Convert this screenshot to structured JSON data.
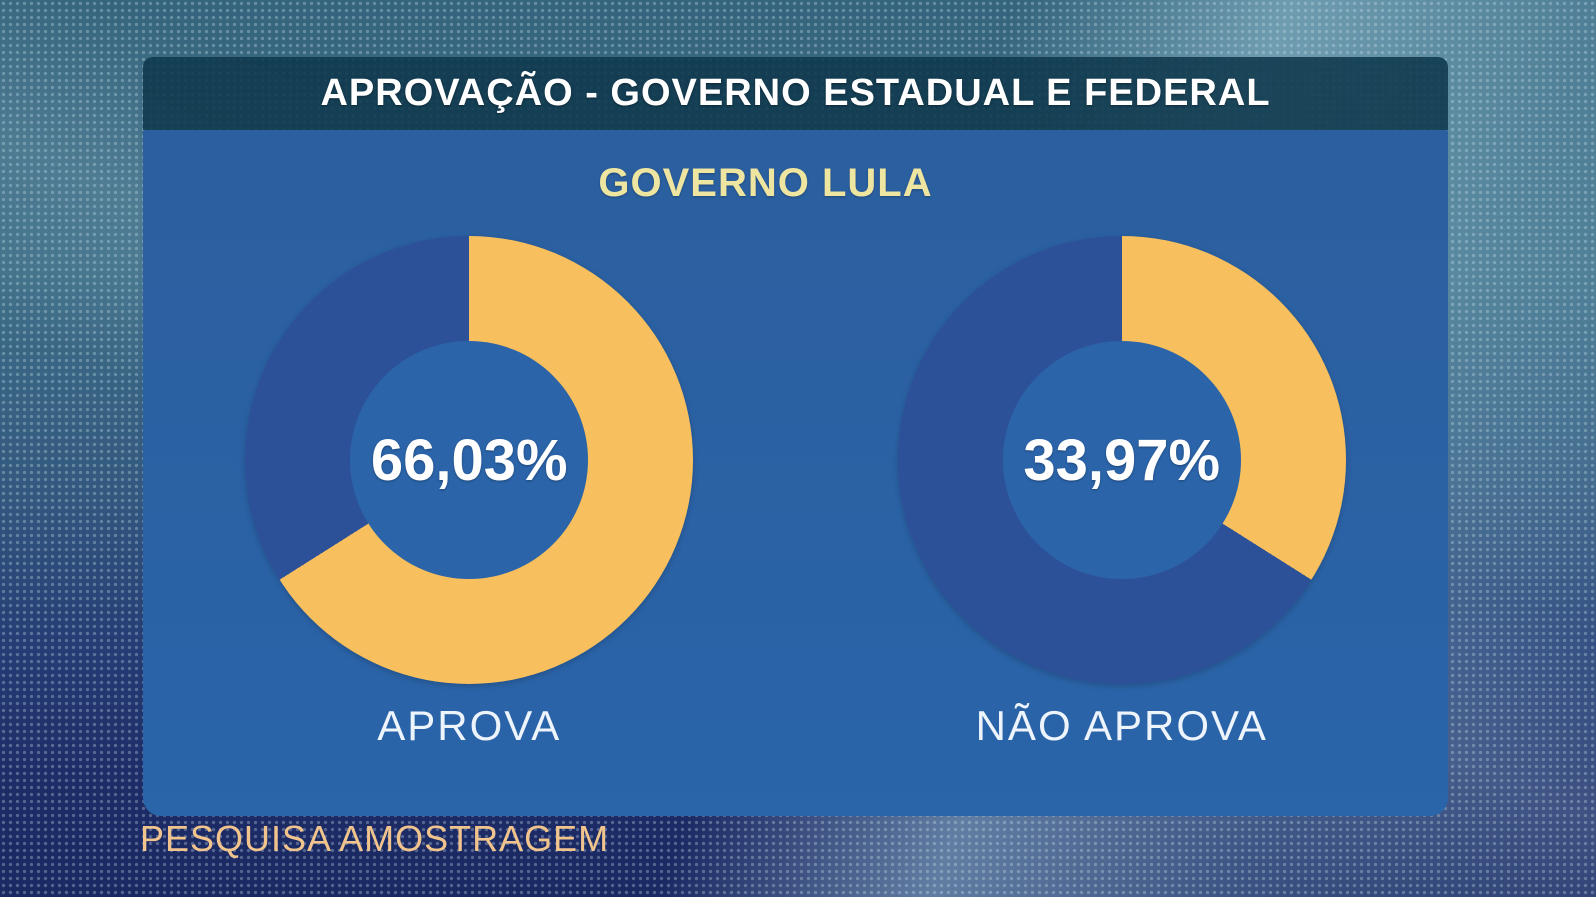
{
  "header": {
    "title": "APROVAÇÃO - GOVERNO ESTADUAL E FEDERAL"
  },
  "footer": {
    "source": "PESQUISA AMOSTRAGEM"
  },
  "colors": {
    "panel_bg": "#2a62a6",
    "header_bg": "#12404f",
    "slice_yellow": "#f7bf5d",
    "remainder_blue": "#2d5198",
    "hole_blue": "#2b64a9",
    "subtitle_yellow": "#eee5a0",
    "footer_orange": "#f0c48c"
  },
  "chart_data": {
    "type": "pie",
    "variant": "donut",
    "title": "GOVERNO LULA",
    "units": "%",
    "start_angle_deg": 0,
    "direction": "clockwise",
    "legend_position": "below-each-chart",
    "colors": {
      "slice": "#f7bf5d",
      "remainder": "#2d5198"
    },
    "charts": [
      {
        "label": "APROVA",
        "value": 66.03,
        "display": "66,03%"
      },
      {
        "label": "NÃO APROVA",
        "value": 33.97,
        "display": "33,97%"
      }
    ]
  }
}
